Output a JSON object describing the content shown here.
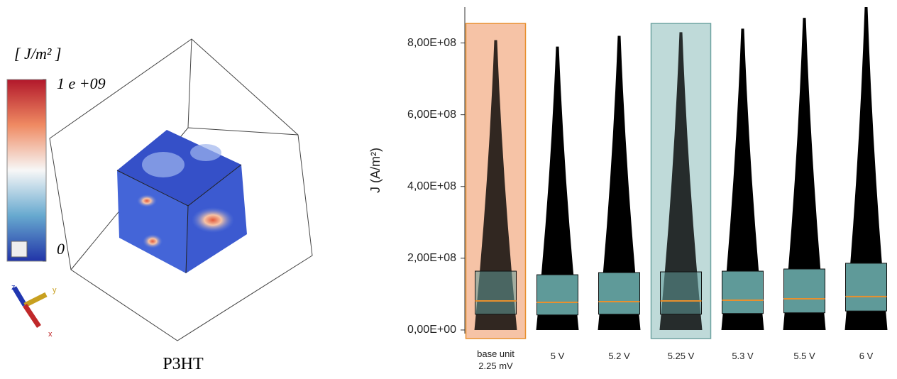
{
  "chart_data": [
    {
      "type": "colorbar",
      "title": "[ J/m² ]",
      "caption": "P3HT",
      "colors": [
        "#b2182b",
        "#ef8a62",
        "#f7f7f7",
        "#67a9cf",
        "#2134a8"
      ],
      "lim": [
        0,
        1000000000
      ],
      "ticks": [
        {
          "value": 1000000000,
          "label": "1 e +09"
        },
        0
      ],
      "axes_labels": [
        "z",
        "y",
        "x"
      ]
    },
    {
      "type": "box",
      "ylabel": "J (A/m²)",
      "categories": [
        "base unit 2.25 mV",
        "5 V",
        "5.2 V",
        "5.25 V",
        "5.3 V",
        "5.5 V",
        "6 V"
      ],
      "min": [
        0,
        0,
        0,
        0,
        0,
        0,
        0
      ],
      "q1": [
        44000000,
        42000000,
        44000000,
        44000000,
        46000000,
        48000000,
        53000000
      ],
      "median": [
        81000000,
        77000000,
        79000000,
        81000000,
        83000000,
        87000000,
        93000000
      ],
      "q3": [
        164000000,
        154000000,
        160000000,
        162000000,
        164000000,
        170000000,
        186000000
      ],
      "max": [
        808000000,
        790000000,
        820000000,
        830000000,
        840000000,
        870000000,
        900000000
      ],
      "box_color": "#5f9a99",
      "median_color": "#e8902e",
      "point_color": "#000000",
      "highlight_color": [
        "#f6c3a6",
        null,
        null,
        "#bfdad9",
        null,
        null,
        null
      ],
      "ylim": [
        -10000000,
        900000000
      ],
      "yticks": [
        {
          "value": 0,
          "label": "0,00E+00"
        },
        {
          "value": 200000000,
          "label": "2,00E+08"
        },
        {
          "value": 400000000,
          "label": "4,00E+08"
        },
        {
          "value": 600000000,
          "label": "6,00E+08"
        },
        {
          "value": 800000000,
          "label": "8,00E+08"
        }
      ]
    }
  ]
}
